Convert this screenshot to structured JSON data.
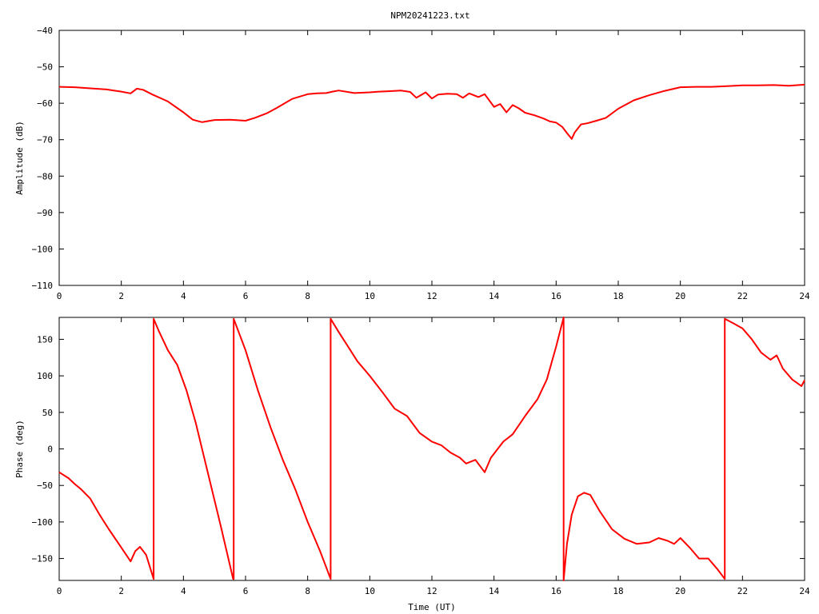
{
  "title": "NPM20241223.txt",
  "colors": {
    "series": "#ff0000",
    "axes": "#000000",
    "background": "#ffffff"
  },
  "chart_data": [
    {
      "type": "line",
      "title": "NPM20241223.txt",
      "xlabel": "",
      "ylabel": "Amplitude (dB)",
      "xlim": [
        0,
        24
      ],
      "ylim": [
        -110,
        -40
      ],
      "xticks": [
        "0",
        "2",
        "4",
        "6",
        "8",
        "10",
        "12",
        "14",
        "16",
        "18",
        "20",
        "22",
        "24"
      ],
      "yticks": [
        "-40",
        "-50",
        "-60",
        "-70",
        "-80",
        "-90",
        "-100",
        "-110"
      ],
      "grid": false,
      "legend": "none",
      "series": [
        {
          "x": [
            0,
            0.5,
            1,
            1.5,
            2,
            2.3,
            2.5,
            2.7,
            3,
            3.5,
            4,
            4.3,
            4.6,
            5,
            5.5,
            6,
            6.3,
            6.7,
            7,
            7.5,
            8,
            8.3,
            8.6,
            8.8,
            9,
            9.5,
            10,
            10.3,
            10.6,
            11,
            11.3,
            11.5,
            11.8,
            12,
            12.2,
            12.5,
            12.8,
            13,
            13.2,
            13.5,
            13.7,
            14,
            14.2,
            14.4,
            14.6,
            14.8,
            15,
            15.3,
            15.6,
            15.8,
            16,
            16.2,
            16.35,
            16.5,
            16.6,
            16.8,
            17,
            17.3,
            17.6,
            18,
            18.5,
            19,
            19.5,
            20,
            20.5,
            21,
            21.5,
            22,
            22.5,
            23,
            23.5,
            24
          ],
          "y": [
            -55.5,
            -55.6,
            -55.9,
            -56.2,
            -56.8,
            -57.3,
            -56,
            -56.3,
            -57.6,
            -59.5,
            -62.5,
            -64.5,
            -65.2,
            -64.6,
            -64.5,
            -64.8,
            -64,
            -62.7,
            -61.3,
            -58.8,
            -57.5,
            -57.3,
            -57.2,
            -56.8,
            -56.5,
            -57.2,
            -57,
            -56.8,
            -56.7,
            -56.5,
            -56.9,
            -58.5,
            -57,
            -58.7,
            -57.6,
            -57.4,
            -57.5,
            -58.5,
            -57.3,
            -58.3,
            -57.5,
            -61,
            -60.2,
            -62.5,
            -60.5,
            -61.4,
            -62.6,
            -63.3,
            -64.2,
            -65,
            -65.3,
            -66.5,
            -68.2,
            -69.8,
            -68,
            -65.8,
            -65.5,
            -64.8,
            -64,
            -61.5,
            -59.2,
            -57.8,
            -56.6,
            -55.6,
            -55.5,
            -55.5,
            -55.3,
            -55.1,
            -55.1,
            -55,
            -55.2,
            -54.9
          ]
        }
      ]
    },
    {
      "type": "line",
      "title": "",
      "xlabel": "Time (UT)",
      "ylabel": "Phase (deg)",
      "xlim": [
        0,
        24
      ],
      "ylim": [
        -180,
        180
      ],
      "xticks": [
        "0",
        "2",
        "4",
        "6",
        "8",
        "10",
        "12",
        "14",
        "16",
        "18",
        "20",
        "22",
        "24"
      ],
      "yticks": [
        "150",
        "100",
        "50",
        "0",
        "-50",
        "-100",
        "-150"
      ],
      "grid": false,
      "legend": "none",
      "series": [
        {
          "x": [
            0,
            0.3,
            0.5,
            0.7,
            1,
            1.3,
            1.6,
            2,
            2.3,
            2.45,
            2.6,
            2.8,
            3.04,
            3.04,
            3.2,
            3.5,
            3.8,
            4.1,
            4.4,
            4.8,
            5.2,
            5.6,
            5.62,
            5.62,
            6,
            6.4,
            6.8,
            7.2,
            7.6,
            8,
            8.4,
            8.74,
            8.74,
            9,
            9.3,
            9.6,
            10,
            10.4,
            10.8,
            11.2,
            11.6,
            12,
            12.3,
            12.6,
            12.9,
            13.1,
            13.4,
            13.7,
            13.9,
            14.3,
            14.6,
            15,
            15.4,
            15.7,
            16,
            16.24,
            16.24,
            16.35,
            16.5,
            16.7,
            16.9,
            17.1,
            17.4,
            17.8,
            18.2,
            18.6,
            19,
            19.3,
            19.6,
            19.8,
            20,
            20.3,
            20.6,
            20.9,
            21.2,
            21.43,
            21.43,
            21.7,
            22,
            22.3,
            22.6,
            22.9,
            23.1,
            23.3,
            23.6,
            23.9,
            24
          ],
          "y": [
            -32,
            -40,
            -48,
            -55,
            -68,
            -90,
            -110,
            -135,
            -154,
            -140,
            -134,
            -145,
            -178,
            178,
            162,
            135,
            115,
            80,
            35,
            -35,
            -105,
            -178,
            -178,
            178,
            135,
            80,
            30,
            -15,
            -55,
            -100,
            -140,
            -178,
            178,
            160,
            140,
            120,
            100,
            78,
            55,
            45,
            22,
            10,
            5,
            -5,
            -12,
            -20,
            -15,
            -32,
            -12,
            10,
            20,
            45,
            68,
            95,
            140,
            180,
            -180,
            -130,
            -90,
            -65,
            -60,
            -63,
            -85,
            -110,
            -123,
            -130,
            -128,
            -122,
            -126,
            -130,
            -122,
            -135,
            -150,
            -150,
            -165,
            -178,
            178,
            172,
            165,
            150,
            132,
            122,
            128,
            110,
            95,
            86,
            94
          ]
        }
      ]
    }
  ]
}
